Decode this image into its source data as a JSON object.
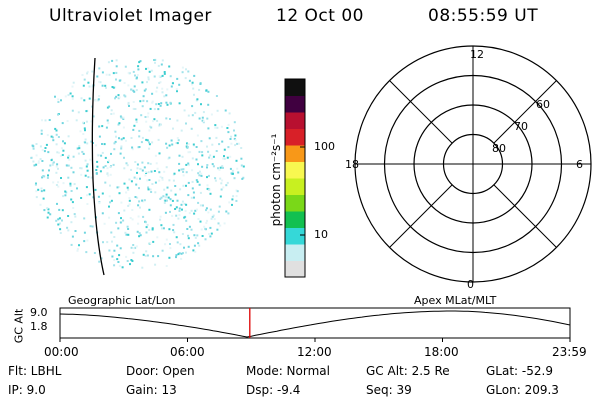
{
  "header": {
    "title": "Ultraviolet Imager",
    "date": "12 Oct 00",
    "time": "08:55:59 UT"
  },
  "colorbar": {
    "unit_label": "photon cm⁻²s⁻¹",
    "ticks": [
      "100",
      "10"
    ],
    "colors": [
      "#e0e0e0",
      "#c8eef2",
      "#35d8d8",
      "#12c050",
      "#7ad818",
      "#c8f020",
      "#f8f850",
      "#f89818",
      "#d82028",
      "#b81030",
      "#400040",
      "#101010"
    ]
  },
  "polar_plot": {
    "lat_labels": [
      "60",
      "70",
      "80"
    ],
    "mlt_labels": [
      "12",
      "18",
      "6",
      "0"
    ],
    "rings_lat": [
      50,
      60,
      70,
      80
    ]
  },
  "timeline": {
    "left_label": "Geographic Lat/Lon",
    "right_label": "Apex MLat/MLT",
    "y_title": "GC Alt",
    "y_ticks": [
      "9.0",
      "1.8"
    ],
    "x_ticks": [
      "00:00",
      "06:00",
      "12:00",
      "18:00",
      "23:59"
    ],
    "current_time_hours": 8.93,
    "marker_color": "#dd0000"
  },
  "footer": {
    "filter": "Flt: LBHL",
    "ip": "IP:  9.0",
    "door": "Door: Open",
    "gain": "Gain: 13",
    "mode": "Mode: Normal",
    "dsp": "Dsp:    -9.4",
    "gc_alt": "GC Alt: 2.5 Re",
    "seq": "Seq: 39",
    "glat": "GLat: -52.9",
    "glon": "GLon: 209.3"
  }
}
